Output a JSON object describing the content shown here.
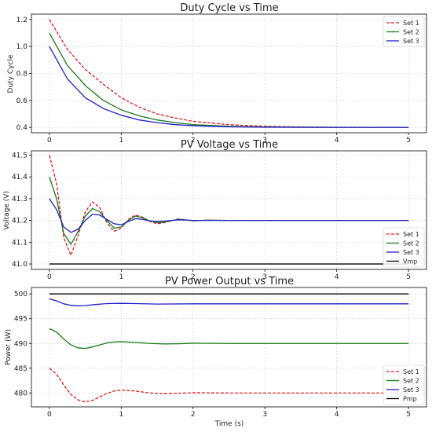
{
  "chart_data": [
    {
      "type": "line",
      "title": "Duty Cycle vs Time",
      "xlabel": "",
      "ylabel": "Duty Cycle",
      "xlim": [
        -0.25,
        5.25
      ],
      "ylim": [
        0.36,
        1.24
      ],
      "xticks": [
        "0",
        "1",
        "2",
        "3",
        "4",
        "5"
      ],
      "yticks": [
        "0.4",
        "0.6",
        "0.8",
        "1.0",
        "1.2"
      ],
      "grid": true,
      "legend": "upper-right",
      "series": [
        {
          "name": "Set 1",
          "color": "#e31a1c",
          "style": "dashed",
          "x": [
            0,
            0.25,
            0.5,
            0.75,
            1.0,
            1.25,
            1.5,
            1.75,
            2.0,
            2.5,
            3.0,
            3.5,
            4.0,
            4.5,
            5.0
          ],
          "y": [
            1.2,
            0.98,
            0.83,
            0.72,
            0.62,
            0.55,
            0.5,
            0.47,
            0.445,
            0.42,
            0.408,
            0.403,
            0.401,
            0.4,
            0.4
          ]
        },
        {
          "name": "Set 2",
          "color": "#1a7a1a",
          "style": "solid",
          "x": [
            0,
            0.25,
            0.5,
            0.75,
            1.0,
            1.25,
            1.5,
            1.75,
            2.0,
            2.5,
            3.0,
            3.5,
            4.0,
            4.5,
            5.0
          ],
          "y": [
            1.1,
            0.86,
            0.71,
            0.6,
            0.53,
            0.485,
            0.455,
            0.435,
            0.42,
            0.408,
            0.403,
            0.401,
            0.4,
            0.4,
            0.4
          ]
        },
        {
          "name": "Set 3",
          "color": "#1f1fc8",
          "style": "solid",
          "x": [
            0,
            0.25,
            0.5,
            0.75,
            1.0,
            1.25,
            1.5,
            1.75,
            2.0,
            2.5,
            3.0,
            3.5,
            4.0,
            4.5,
            5.0
          ],
          "y": [
            1.0,
            0.76,
            0.62,
            0.54,
            0.49,
            0.455,
            0.435,
            0.42,
            0.412,
            0.404,
            0.401,
            0.4,
            0.4,
            0.4,
            0.4
          ]
        }
      ]
    },
    {
      "type": "line",
      "title": "PV Voltage vs Time",
      "xlabel": "",
      "ylabel": "Voltage (V)",
      "xlim": [
        -0.25,
        5.25
      ],
      "ylim": [
        40.975,
        41.52
      ],
      "xticks": [
        "0",
        "1",
        "2",
        "3",
        "4",
        "5"
      ],
      "yticks": [
        "41.0",
        "41.1",
        "41.2",
        "41.3",
        "41.4",
        "41.5"
      ],
      "grid": true,
      "legend": "lower-right",
      "series": [
        {
          "name": "Set 1",
          "color": "#e31a1c",
          "style": "dashed",
          "x": [
            0,
            0.1,
            0.2,
            0.3,
            0.4,
            0.5,
            0.6,
            0.7,
            0.8,
            0.9,
            1.0,
            1.1,
            1.2,
            1.3,
            1.4,
            1.5,
            1.6,
            1.8,
            2.0,
            2.2,
            2.5,
            3.0,
            4.0,
            5.0
          ],
          "y": [
            41.5,
            41.37,
            41.12,
            41.04,
            41.13,
            41.24,
            41.285,
            41.26,
            41.19,
            41.15,
            41.165,
            41.205,
            41.225,
            41.215,
            41.195,
            41.185,
            41.19,
            41.207,
            41.198,
            41.202,
            41.2,
            41.2,
            41.2,
            41.2
          ]
        },
        {
          "name": "Set 2",
          "color": "#1a7a1a",
          "style": "solid",
          "x": [
            0,
            0.1,
            0.2,
            0.3,
            0.4,
            0.5,
            0.6,
            0.7,
            0.8,
            0.9,
            1.0,
            1.1,
            1.2,
            1.3,
            1.4,
            1.5,
            1.6,
            1.8,
            2.0,
            2.2,
            2.5,
            3.0,
            4.0,
            5.0
          ],
          "y": [
            41.4,
            41.3,
            41.14,
            41.09,
            41.15,
            41.22,
            41.255,
            41.24,
            41.2,
            41.165,
            41.17,
            41.2,
            41.22,
            41.212,
            41.198,
            41.19,
            41.193,
            41.205,
            41.199,
            41.201,
            41.2,
            41.2,
            41.2,
            41.2
          ]
        },
        {
          "name": "Set 3",
          "color": "#1f1fc8",
          "style": "solid",
          "x": [
            0,
            0.1,
            0.2,
            0.3,
            0.4,
            0.5,
            0.6,
            0.7,
            0.8,
            0.9,
            1.0,
            1.1,
            1.2,
            1.3,
            1.4,
            1.5,
            1.6,
            1.8,
            2.0,
            2.2,
            2.5,
            3.0,
            4.0,
            5.0
          ],
          "y": [
            41.3,
            41.25,
            41.17,
            41.145,
            41.16,
            41.2,
            41.228,
            41.225,
            41.205,
            41.185,
            41.18,
            41.195,
            41.208,
            41.205,
            41.198,
            41.195,
            41.197,
            41.203,
            41.2,
            41.2,
            41.2,
            41.2,
            41.2,
            41.2
          ]
        },
        {
          "name": "Vmp",
          "color": "#000000",
          "style": "solid",
          "x": [
            0,
            5
          ],
          "y": [
            41.0,
            41.0
          ]
        }
      ]
    },
    {
      "type": "line",
      "title": "PV Power Output vs Time",
      "xlabel": "Time (s)",
      "ylabel": "Power (W)",
      "xlim": [
        -0.25,
        5.25
      ],
      "ylim": [
        477.2,
        501.3
      ],
      "xticks": [
        "0",
        "1",
        "2",
        "3",
        "4",
        "5"
      ],
      "yticks": [
        "480",
        "485",
        "490",
        "495",
        "500"
      ],
      "grid": true,
      "legend": "lower-right",
      "series": [
        {
          "name": "Set 1",
          "color": "#e31a1c",
          "style": "dashed",
          "x": [
            0,
            0.1,
            0.2,
            0.3,
            0.4,
            0.5,
            0.6,
            0.7,
            0.8,
            0.9,
            1.0,
            1.2,
            1.4,
            1.6,
            1.8,
            2.0,
            2.5,
            3.0,
            4.0,
            5.0
          ],
          "y": [
            485.0,
            483.8,
            481.6,
            479.7,
            478.6,
            478.2,
            478.5,
            479.2,
            479.9,
            480.4,
            480.6,
            480.4,
            480.0,
            479.85,
            479.95,
            480.05,
            480.0,
            480.0,
            480.0,
            480.0
          ]
        },
        {
          "name": "Set 2",
          "color": "#1a7a1a",
          "style": "solid",
          "x": [
            0,
            0.1,
            0.2,
            0.3,
            0.4,
            0.5,
            0.6,
            0.7,
            0.8,
            0.9,
            1.0,
            1.2,
            1.4,
            1.6,
            1.8,
            2.0,
            2.5,
            3.0,
            4.0,
            5.0
          ],
          "y": [
            493.0,
            492.3,
            490.9,
            489.7,
            489.1,
            489.0,
            489.3,
            489.7,
            490.1,
            490.3,
            490.35,
            490.2,
            490.0,
            489.9,
            489.95,
            490.05,
            490.0,
            490.0,
            490.0,
            490.0
          ]
        },
        {
          "name": "Set 3",
          "color": "#1f1fc8",
          "style": "solid",
          "x": [
            0,
            0.1,
            0.2,
            0.3,
            0.4,
            0.5,
            0.6,
            0.8,
            1.0,
            1.2,
            1.5,
            2.0,
            3.0,
            4.0,
            5.0
          ],
          "y": [
            499.0,
            498.6,
            498.0,
            497.7,
            497.6,
            497.65,
            497.8,
            498.05,
            498.1,
            498.05,
            497.95,
            498.0,
            498.0,
            498.0,
            498.0
          ]
        },
        {
          "name": "Pmp",
          "color": "#000000",
          "style": "solid",
          "x": [
            0,
            5
          ],
          "y": [
            500.0,
            500.0
          ]
        }
      ]
    }
  ]
}
